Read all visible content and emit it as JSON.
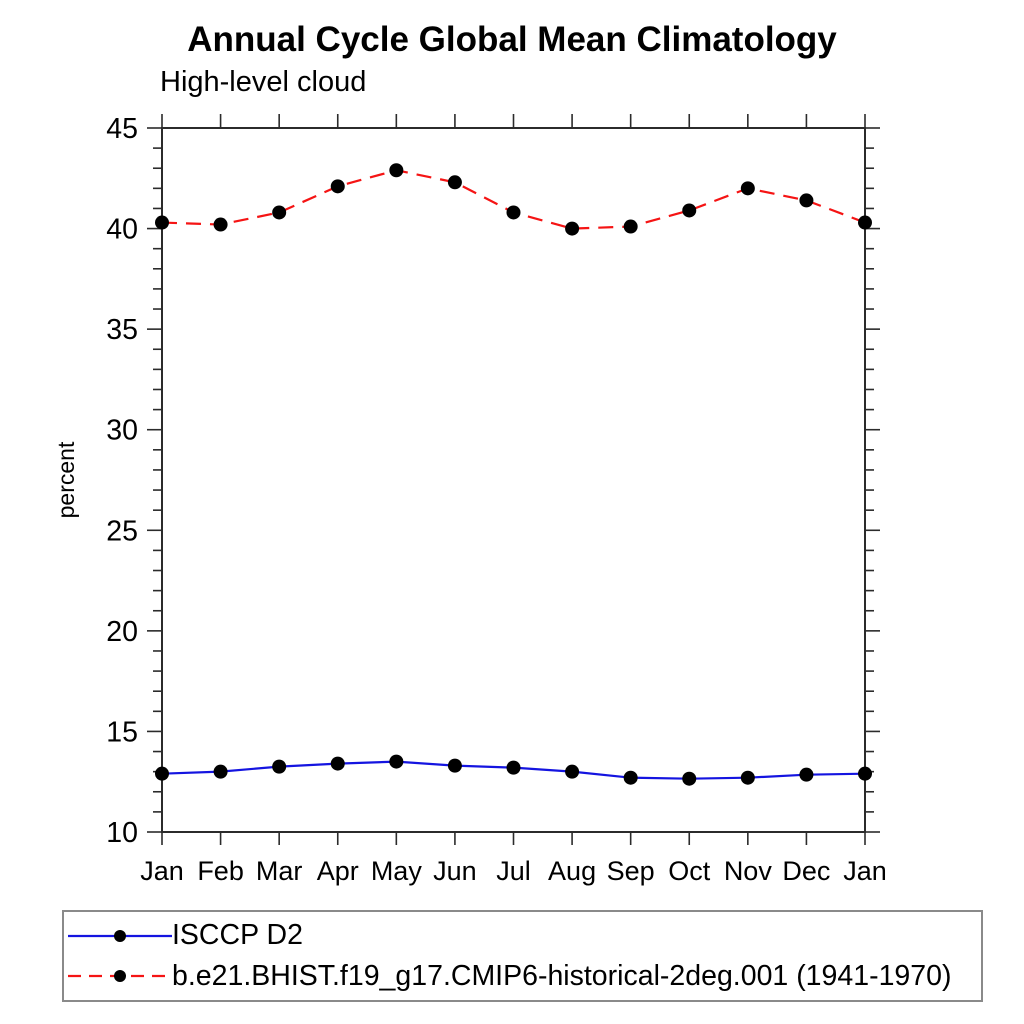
{
  "title": "Annual Cycle Global Mean Climatology",
  "subtitle": "High-level cloud",
  "ylabel": "percent",
  "chart_data": {
    "type": "line",
    "categories": [
      "Jan",
      "Feb",
      "Mar",
      "Apr",
      "May",
      "Jun",
      "Jul",
      "Aug",
      "Sep",
      "Oct",
      "Nov",
      "Dec",
      "Jan"
    ],
    "ylim": [
      10,
      45
    ],
    "ytick_major_step": 5,
    "ytick_minor_step": 1,
    "ytick_labels": [
      "10",
      "15",
      "20",
      "25",
      "30",
      "35",
      "40",
      "45"
    ],
    "grid": false,
    "legend_position": "bottom",
    "marker": "filled-circle",
    "marker_color": "#000000",
    "frame_color": "#2b2b2b",
    "series": [
      {
        "name": "ISCCP D2",
        "color": "#1414e0",
        "line_style": "solid",
        "values": [
          12.9,
          13.0,
          13.25,
          13.4,
          13.5,
          13.3,
          13.2,
          13.0,
          12.7,
          12.65,
          12.7,
          12.85,
          12.9
        ]
      },
      {
        "name": "b.e21.BHIST.f19_g17.CMIP6-historical-2deg.001 (1941-1970)",
        "color": "#f51414",
        "line_style": "dashed",
        "values": [
          40.3,
          40.2,
          40.8,
          42.1,
          42.9,
          42.3,
          40.8,
          40.0,
          40.1,
          40.9,
          42.0,
          41.4,
          40.3
        ]
      }
    ]
  }
}
